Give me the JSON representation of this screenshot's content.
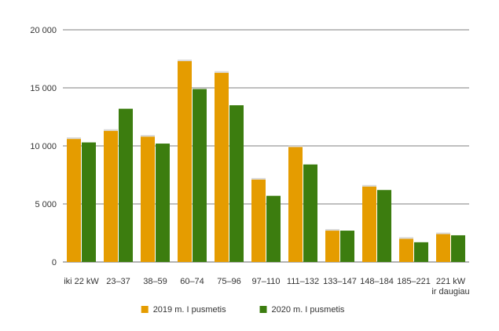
{
  "chart_data": {
    "type": "bar",
    "categories": [
      [
        "iki 22 kW"
      ],
      [
        "23–37"
      ],
      [
        "38–59"
      ],
      [
        "60–74"
      ],
      [
        "75–96"
      ],
      [
        "97–110"
      ],
      [
        "111–132"
      ],
      [
        "133–147"
      ],
      [
        "148–184"
      ],
      [
        "185–221"
      ],
      [
        "221 kW",
        "ir daugiau"
      ]
    ],
    "series": [
      {
        "name": "2019 m. I pusmetis",
        "color": "#E59C00",
        "values": [
          10600,
          11300,
          10800,
          17300,
          16300,
          7100,
          9900,
          2700,
          6500,
          2000,
          2400
        ]
      },
      {
        "name": "2020 m. I pusmetis",
        "color": "#3C7D0F",
        "values": [
          10300,
          13200,
          10200,
          14900,
          13500,
          5700,
          8400,
          2700,
          6200,
          1700,
          2300
        ]
      }
    ],
    "yticks": [
      0,
      5000,
      10000,
      15000,
      20000
    ],
    "ytick_labels": [
      "0",
      "5 000",
      "10 000",
      "15 000",
      "20 000"
    ],
    "ylim": [
      0,
      20000
    ],
    "grid": true,
    "legend_position": "bottom-center"
  }
}
